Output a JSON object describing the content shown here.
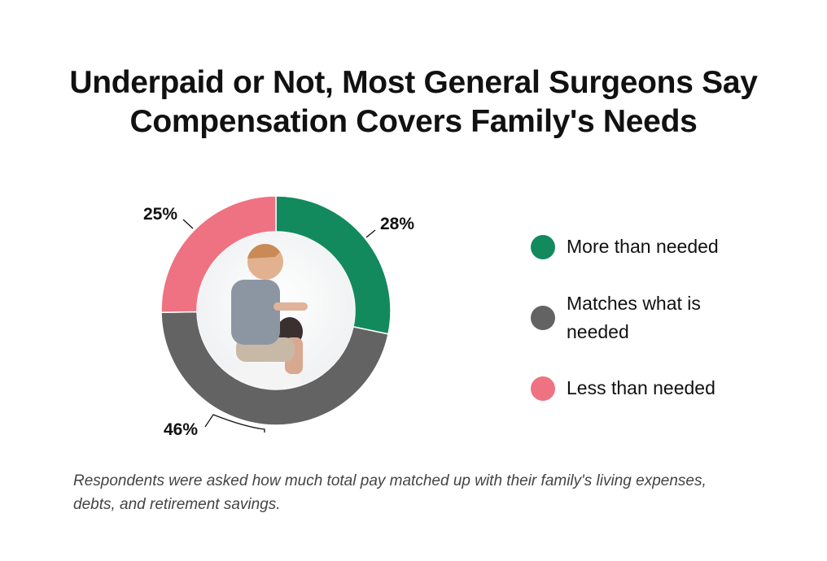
{
  "chart_data": {
    "type": "pie",
    "variant": "donut",
    "title": "Underpaid or Not, Most General Surgeons Say Compensation Covers Family's Needs",
    "categories": [
      "More than needed",
      "Matches what is needed",
      "Less than needed"
    ],
    "values": [
      28,
      46,
      25
    ],
    "data_labels": [
      "28%",
      "46%",
      "25%"
    ],
    "colors": [
      "#138a5e",
      "#636363",
      "#ef7282"
    ],
    "legend_position": "right",
    "center_image": "photo of child on father's shoulders",
    "note": "Respondents were asked how much total pay matched up with their family's living expenses, debts, and retirement savings."
  }
}
